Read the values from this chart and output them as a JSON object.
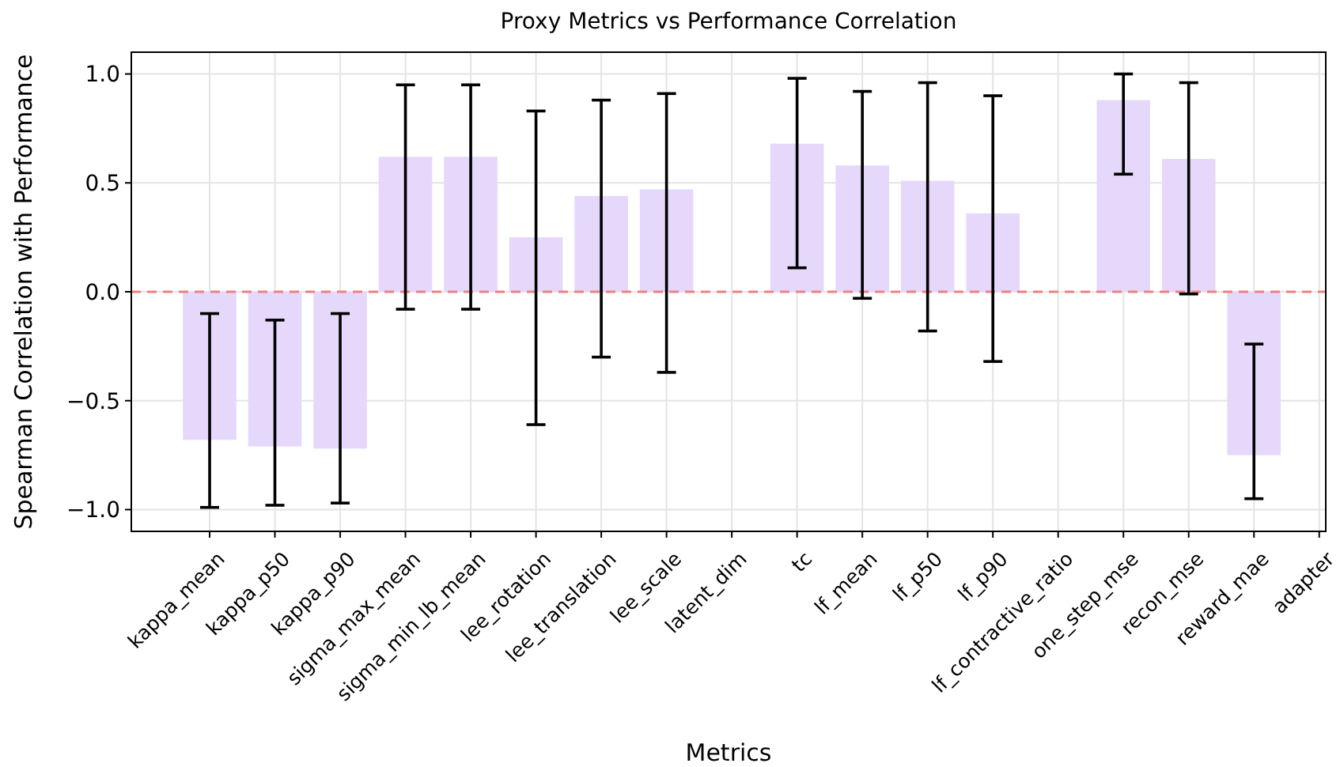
{
  "chart_data": {
    "type": "bar",
    "title": "Proxy Metrics vs Performance Correlation",
    "xlabel": "Metrics",
    "ylabel": "Spearman Correlation with Performance",
    "categories": [
      "kappa_mean",
      "kappa_p50",
      "kappa_p90",
      "sigma_max_mean",
      "sigma_min_lb_mean",
      "lee_rotation",
      "lee_translation",
      "lee_scale",
      "latent_dim",
      "tc",
      "lf_mean",
      "lf_p50",
      "lf_p90",
      "lf_contractive_ratio",
      "one_step_mse",
      "recon_mse",
      "reward_mae",
      "adapter"
    ],
    "values": [
      -0.68,
      -0.71,
      -0.72,
      0.62,
      0.62,
      0.25,
      0.44,
      0.47,
      null,
      0.68,
      0.58,
      0.51,
      0.36,
      null,
      0.88,
      0.61,
      -0.75,
      null
    ],
    "errors": [
      [
        -0.99,
        -0.1
      ],
      [
        -0.98,
        -0.13
      ],
      [
        -0.97,
        -0.1
      ],
      [
        -0.08,
        0.95
      ],
      [
        -0.08,
        0.95
      ],
      [
        -0.61,
        0.83
      ],
      [
        -0.3,
        0.88
      ],
      [
        -0.37,
        0.91
      ],
      null,
      [
        0.11,
        0.98
      ],
      [
        -0.03,
        0.92
      ],
      [
        -0.18,
        0.96
      ],
      [
        -0.32,
        0.9
      ],
      null,
      [
        0.54,
        1.0
      ],
      [
        -0.01,
        0.96
      ],
      [
        -0.24,
        -0.95
      ],
      null
    ],
    "color": "#e6d8fb",
    "ylim": [
      -1.1,
      1.1
    ],
    "yticks": [
      {
        "value": -1,
        "label": "−1.0"
      },
      {
        "value": -0.5,
        "label": "−0.5"
      },
      {
        "value": 0,
        "label": "0.0"
      },
      {
        "value": 0.5,
        "label": "0.5"
      },
      {
        "value": 1,
        "label": "1.0"
      }
    ],
    "grid": true,
    "ref_lines": [
      {
        "axis": "y",
        "value": 0,
        "color": "#f08080",
        "line_style": "dashed"
      }
    ]
  }
}
